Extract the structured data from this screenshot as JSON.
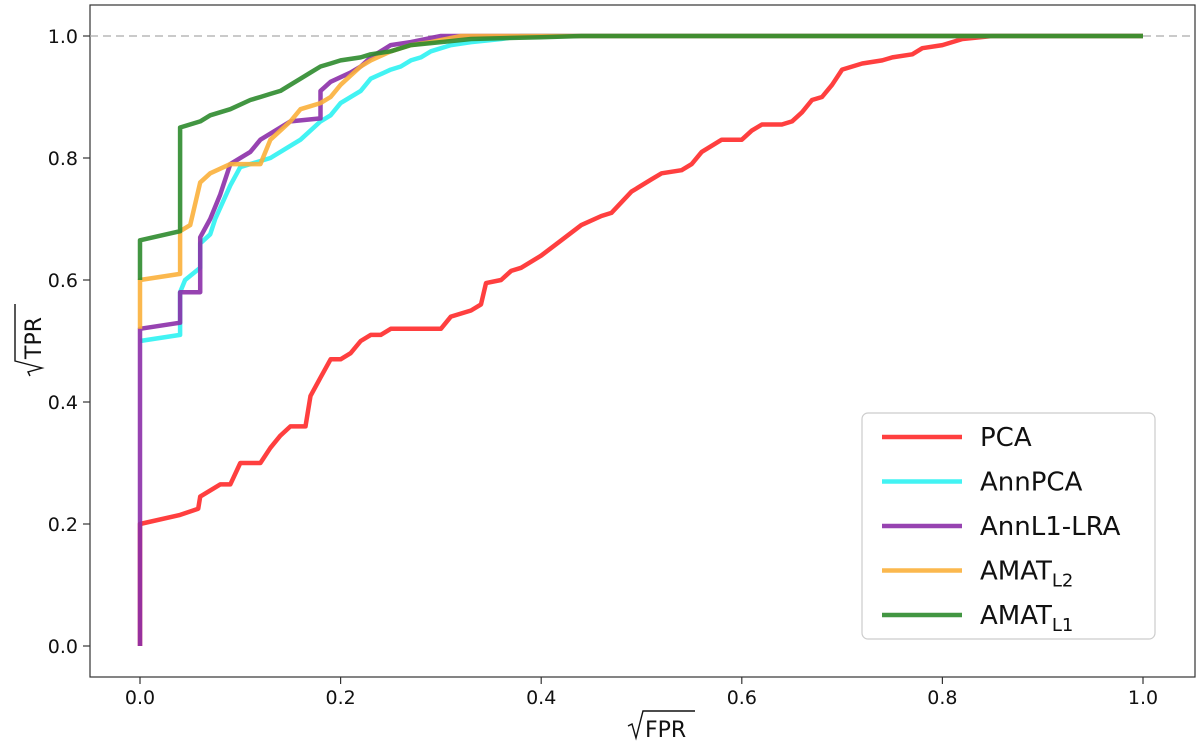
{
  "chart_data": {
    "type": "line",
    "xlabel": "FPR",
    "ylabel": "TPR",
    "xlabel_sqrt": true,
    "ylabel_sqrt": true,
    "xlim": [
      -0.1,
      1.1
    ],
    "ylim": [
      -0.05,
      1.05
    ],
    "x_ticks": [
      "0.0",
      "0.2",
      "0.4",
      "0.6",
      "0.8",
      "1.0"
    ],
    "y_ticks": [
      "0.0",
      "0.2",
      "0.4",
      "0.6",
      "0.8",
      "1.0"
    ],
    "reference_line": {
      "y": 1.0,
      "style": "dashed",
      "color": "#aaaaaa"
    },
    "grid": false,
    "legend_position": "lower-right",
    "series": [
      {
        "name": "PCA",
        "color": "#ff2a2a",
        "points": [
          [
            0,
            0
          ],
          [
            0,
            0.2
          ],
          [
            0.04,
            0.215
          ],
          [
            0.058,
            0.225
          ],
          [
            0.06,
            0.245
          ],
          [
            0.08,
            0.265
          ],
          [
            0.09,
            0.265
          ],
          [
            0.1,
            0.3
          ],
          [
            0.12,
            0.3
          ],
          [
            0.13,
            0.325
          ],
          [
            0.14,
            0.345
          ],
          [
            0.15,
            0.36
          ],
          [
            0.165,
            0.36
          ],
          [
            0.17,
            0.41
          ],
          [
            0.18,
            0.44
          ],
          [
            0.19,
            0.47
          ],
          [
            0.2,
            0.47
          ],
          [
            0.21,
            0.48
          ],
          [
            0.22,
            0.5
          ],
          [
            0.23,
            0.51
          ],
          [
            0.24,
            0.51
          ],
          [
            0.25,
            0.52
          ],
          [
            0.3,
            0.52
          ],
          [
            0.31,
            0.54
          ],
          [
            0.33,
            0.55
          ],
          [
            0.34,
            0.56
          ],
          [
            0.345,
            0.595
          ],
          [
            0.36,
            0.6
          ],
          [
            0.37,
            0.615
          ],
          [
            0.38,
            0.62
          ],
          [
            0.4,
            0.64
          ],
          [
            0.42,
            0.665
          ],
          [
            0.44,
            0.69
          ],
          [
            0.46,
            0.705
          ],
          [
            0.47,
            0.71
          ],
          [
            0.49,
            0.745
          ],
          [
            0.51,
            0.765
          ],
          [
            0.52,
            0.775
          ],
          [
            0.54,
            0.78
          ],
          [
            0.55,
            0.79
          ],
          [
            0.56,
            0.81
          ],
          [
            0.57,
            0.82
          ],
          [
            0.58,
            0.83
          ],
          [
            0.6,
            0.83
          ],
          [
            0.61,
            0.845
          ],
          [
            0.62,
            0.855
          ],
          [
            0.64,
            0.855
          ],
          [
            0.65,
            0.86
          ],
          [
            0.66,
            0.875
          ],
          [
            0.67,
            0.895
          ],
          [
            0.68,
            0.9
          ],
          [
            0.69,
            0.92
          ],
          [
            0.7,
            0.945
          ],
          [
            0.72,
            0.955
          ],
          [
            0.74,
            0.96
          ],
          [
            0.75,
            0.965
          ],
          [
            0.77,
            0.97
          ],
          [
            0.78,
            0.98
          ],
          [
            0.8,
            0.985
          ],
          [
            0.82,
            0.995
          ],
          [
            0.85,
            1.0
          ],
          [
            1.0,
            1.0
          ]
        ]
      },
      {
        "name": "AnnPCA",
        "color": "#2ef2f2",
        "points": [
          [
            0,
            0.5
          ],
          [
            0.04,
            0.51
          ],
          [
            0.04,
            0.58
          ],
          [
            0.045,
            0.6
          ],
          [
            0.06,
            0.62
          ],
          [
            0.06,
            0.66
          ],
          [
            0.07,
            0.675
          ],
          [
            0.075,
            0.7
          ],
          [
            0.09,
            0.755
          ],
          [
            0.1,
            0.785
          ],
          [
            0.13,
            0.8
          ],
          [
            0.15,
            0.82
          ],
          [
            0.16,
            0.83
          ],
          [
            0.18,
            0.86
          ],
          [
            0.19,
            0.87
          ],
          [
            0.2,
            0.89
          ],
          [
            0.22,
            0.91
          ],
          [
            0.23,
            0.93
          ],
          [
            0.25,
            0.945
          ],
          [
            0.26,
            0.95
          ],
          [
            0.27,
            0.96
          ],
          [
            0.28,
            0.965
          ],
          [
            0.29,
            0.975
          ],
          [
            0.31,
            0.985
          ],
          [
            0.33,
            0.99
          ],
          [
            0.36,
            0.995
          ],
          [
            0.38,
            1.0
          ],
          [
            1.0,
            1.0
          ]
        ]
      },
      {
        "name": "AnnL1-LRA",
        "color": "#8c2fa8",
        "points": [
          [
            0,
            0
          ],
          [
            0,
            0.52
          ],
          [
            0.04,
            0.53
          ],
          [
            0.04,
            0.58
          ],
          [
            0.06,
            0.58
          ],
          [
            0.06,
            0.67
          ],
          [
            0.07,
            0.7
          ],
          [
            0.08,
            0.74
          ],
          [
            0.09,
            0.79
          ],
          [
            0.11,
            0.81
          ],
          [
            0.12,
            0.83
          ],
          [
            0.15,
            0.86
          ],
          [
            0.18,
            0.865
          ],
          [
            0.18,
            0.91
          ],
          [
            0.19,
            0.925
          ],
          [
            0.21,
            0.94
          ],
          [
            0.22,
            0.95
          ],
          [
            0.23,
            0.965
          ],
          [
            0.24,
            0.975
          ],
          [
            0.25,
            0.985
          ],
          [
            0.27,
            0.99
          ],
          [
            0.3,
            1.0
          ],
          [
            1.0,
            1.0
          ]
        ]
      },
      {
        "name": "AMAT_L2",
        "color": "#fbb03b",
        "points": [
          [
            0,
            0.52
          ],
          [
            0,
            0.6
          ],
          [
            0.04,
            0.61
          ],
          [
            0.04,
            0.68
          ],
          [
            0.05,
            0.69
          ],
          [
            0.06,
            0.76
          ],
          [
            0.07,
            0.775
          ],
          [
            0.09,
            0.79
          ],
          [
            0.12,
            0.79
          ],
          [
            0.13,
            0.83
          ],
          [
            0.15,
            0.86
          ],
          [
            0.16,
            0.88
          ],
          [
            0.18,
            0.89
          ],
          [
            0.19,
            0.9
          ],
          [
            0.2,
            0.92
          ],
          [
            0.21,
            0.935
          ],
          [
            0.22,
            0.95
          ],
          [
            0.23,
            0.96
          ],
          [
            0.25,
            0.975
          ],
          [
            0.27,
            0.985
          ],
          [
            0.29,
            0.99
          ],
          [
            0.32,
            1.0
          ],
          [
            1.0,
            1.0
          ]
        ]
      },
      {
        "name": "AMAT_L1",
        "color": "#2e8b2e",
        "points": [
          [
            0,
            0.6
          ],
          [
            0,
            0.665
          ],
          [
            0.04,
            0.68
          ],
          [
            0.04,
            0.85
          ],
          [
            0.06,
            0.86
          ],
          [
            0.07,
            0.87
          ],
          [
            0.09,
            0.88
          ],
          [
            0.11,
            0.895
          ],
          [
            0.12,
            0.9
          ],
          [
            0.13,
            0.905
          ],
          [
            0.14,
            0.91
          ],
          [
            0.15,
            0.92
          ],
          [
            0.16,
            0.93
          ],
          [
            0.17,
            0.94
          ],
          [
            0.18,
            0.95
          ],
          [
            0.19,
            0.955
          ],
          [
            0.2,
            0.96
          ],
          [
            0.22,
            0.965
          ],
          [
            0.23,
            0.97
          ],
          [
            0.25,
            0.975
          ],
          [
            0.27,
            0.985
          ],
          [
            0.3,
            0.99
          ],
          [
            0.33,
            0.995
          ],
          [
            0.4,
            0.998
          ],
          [
            0.44,
            1.0
          ],
          [
            1.0,
            1.0
          ]
        ]
      }
    ],
    "legend": [
      {
        "label": "PCA",
        "sub": ""
      },
      {
        "label": "AnnPCA",
        "sub": ""
      },
      {
        "label": "AnnL1-LRA",
        "sub": ""
      },
      {
        "label": "AMAT",
        "sub": "L2"
      },
      {
        "label": "AMAT",
        "sub": "L1"
      }
    ]
  }
}
